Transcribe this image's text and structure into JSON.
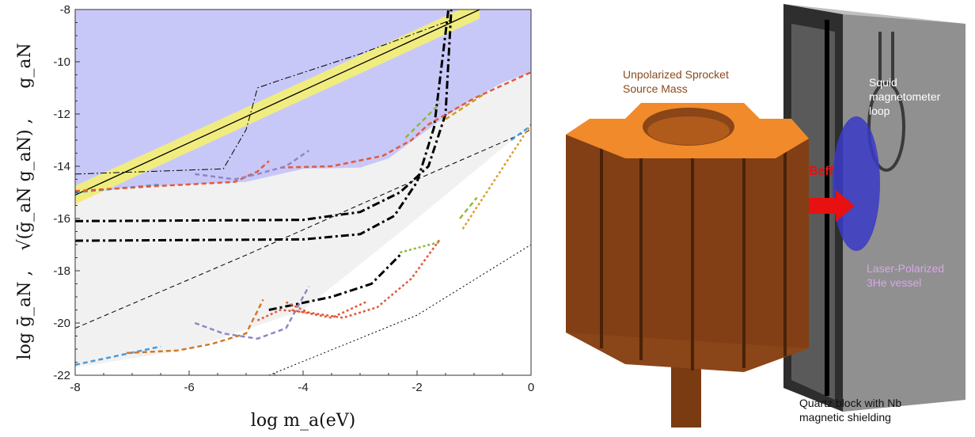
{
  "chart_data": {
    "type": "line",
    "xlabel": "log m_a(eV)",
    "ylabel_parts": [
      "log  ḡ_aN ,",
      "√(ḡ_aN g_aN) ,",
      "g_aN"
    ],
    "xlim": [
      -8,
      0
    ],
    "ylim": [
      -22,
      -8
    ],
    "x_ticks": [
      "-8",
      "-6",
      "-4",
      "-2",
      "0"
    ],
    "y_ticks": [
      "-8",
      "-10",
      "-12",
      "-14",
      "-16",
      "-18",
      "-20",
      "-22"
    ],
    "grid": false,
    "regions": [
      {
        "type": "excluded-top",
        "color": "#9090f0",
        "y_lower": -8.4
      },
      {
        "type": "excluded-region",
        "color": "#c8c8f8",
        "boundary": [
          [
            -8,
            -15.1
          ],
          [
            -7,
            -14.8
          ],
          [
            -6,
            -14.7
          ],
          [
            -5,
            -14.6
          ],
          [
            -4,
            -14.1
          ],
          [
            -3,
            -14.05
          ],
          [
            -2.5,
            -13.7
          ],
          [
            -2,
            -12.9
          ],
          [
            -1.5,
            -12.1
          ],
          [
            -1,
            -11.4
          ],
          [
            -0.5,
            -10.8
          ],
          [
            0,
            -10.4
          ]
        ]
      },
      {
        "type": "grey-band",
        "color": "#f1f1f1",
        "lower": [
          [
            -8,
            -21.7
          ],
          [
            -6,
            -21.0
          ],
          [
            -4,
            -19.5
          ],
          [
            -2,
            -16.0
          ],
          [
            0,
            -12.4
          ]
        ]
      }
    ],
    "band": {
      "color": "#f0ec80",
      "center": [
        [
          -8,
          -15.1
        ],
        [
          -0.9,
          -8.0
        ]
      ],
      "half_width": 0.35
    },
    "series": [
      {
        "style": "solid",
        "color": "#000000",
        "points": [
          [
            -8,
            -15.1
          ],
          [
            -0.9,
            -8.0
          ]
        ]
      },
      {
        "style": "dashdot-thin",
        "color": "#000000",
        "points": [
          [
            -8,
            -14.3
          ],
          [
            -5.4,
            -14.1
          ],
          [
            -5.0,
            -12.6
          ],
          [
            -4.8,
            -11.0
          ],
          [
            -4.4,
            -10.7
          ],
          [
            -3.0,
            -9.7
          ],
          [
            -1.4,
            -8.4
          ]
        ]
      },
      {
        "style": "dashed-thin",
        "color": "#000000",
        "points": [
          [
            -8,
            -20.2
          ],
          [
            -5,
            -17.4
          ],
          [
            -2,
            -14.5
          ],
          [
            0,
            -12.6
          ]
        ]
      },
      {
        "style": "dotted-thin",
        "color": "#000000",
        "points": [
          [
            -4.6,
            -22
          ],
          [
            -2,
            -19.7
          ],
          [
            0,
            -17.0
          ]
        ]
      },
      {
        "style": "dashdot-thick",
        "color": "#000000",
        "points": [
          [
            -8,
            -16.1
          ],
          [
            -4,
            -16.05
          ],
          [
            -3,
            -15.75
          ],
          [
            -2.3,
            -15.0
          ],
          [
            -1.8,
            -14.0
          ],
          [
            -1.5,
            -12.0
          ],
          [
            -1.4,
            -8.0
          ]
        ]
      },
      {
        "style": "dashdot-thick",
        "color": "#000000",
        "points": [
          [
            -8,
            -16.85
          ],
          [
            -4,
            -16.8
          ],
          [
            -3,
            -16.6
          ],
          [
            -2.4,
            -15.9
          ],
          [
            -2,
            -14.6
          ],
          [
            -1.7,
            -12.5
          ],
          [
            -1.45,
            -8.0
          ]
        ]
      },
      {
        "style": "dashdot-thick",
        "color": "#000000",
        "points": [
          [
            -4.6,
            -19.5
          ],
          [
            -3.5,
            -19.0
          ],
          [
            -2.8,
            -18.5
          ],
          [
            -2.3,
            -17.4
          ]
        ]
      },
      {
        "style": "dashed",
        "color": "#4a9ad6",
        "points": [
          [
            -8,
            -15.0
          ],
          [
            -6.5,
            -14.7
          ]
        ]
      },
      {
        "style": "dashed",
        "color": "#4a9ad6",
        "points": [
          [
            -0.35,
            -13.0
          ],
          [
            0,
            -12.45
          ]
        ]
      },
      {
        "style": "dashed",
        "color": "#4a9ad6",
        "points": [
          [
            -8,
            -21.6
          ],
          [
            -6.5,
            -20.9
          ]
        ]
      },
      {
        "style": "dashed",
        "color": "#e05b3a",
        "points": [
          [
            -8,
            -14.95
          ],
          [
            -6.5,
            -14.75
          ],
          [
            -5.2,
            -14.6
          ],
          [
            -4.8,
            -14.2
          ],
          [
            -4.6,
            -13.8
          ]
        ]
      },
      {
        "style": "dashed",
        "color": "#e05b3a",
        "points": [
          [
            -4.4,
            -14.05
          ],
          [
            -3.5,
            -14.0
          ],
          [
            -2.6,
            -13.6
          ],
          [
            -2.1,
            -13.0
          ],
          [
            -1.8,
            -12.4
          ],
          [
            -1,
            -11.4
          ],
          [
            0,
            -10.4
          ]
        ]
      },
      {
        "style": "dashed",
        "color": "#c8a020",
        "points": [
          [
            -1.5,
            -12.2
          ],
          [
            -0.8,
            -11.2
          ]
        ]
      },
      {
        "style": "dashed",
        "color": "#8fb838",
        "points": [
          [
            -2.2,
            -12.9
          ],
          [
            -1.6,
            -11.6
          ]
        ]
      },
      {
        "style": "dotted",
        "color": "#d8a030",
        "points": [
          [
            -1.2,
            -16.4
          ],
          [
            0,
            -12.4
          ]
        ]
      },
      {
        "style": "dashed",
        "color": "#8fb838",
        "points": [
          [
            -1.25,
            -16.0
          ],
          [
            -0.95,
            -15.2
          ]
        ]
      },
      {
        "style": "dotted",
        "color": "#8fb838",
        "points": [
          [
            -2.3,
            -17.3
          ],
          [
            -1.6,
            -16.9
          ]
        ]
      },
      {
        "style": "dashed",
        "color": "#8f86c4",
        "points": [
          [
            -5.9,
            -14.3
          ],
          [
            -5.2,
            -14.5
          ],
          [
            -4.8,
            -14.3
          ],
          [
            -4.3,
            -14.0
          ],
          [
            -3.9,
            -13.4
          ]
        ]
      },
      {
        "style": "dotted",
        "color": "#e05b3a",
        "points": [
          [
            -4.3,
            -19.2
          ],
          [
            -3.9,
            -19.6
          ],
          [
            -3.3,
            -19.8
          ],
          [
            -2.7,
            -19.4
          ],
          [
            -2.1,
            -18.3
          ],
          [
            -1.6,
            -16.8
          ]
        ]
      },
      {
        "style": "dotted",
        "color": "#e05b3a",
        "points": [
          [
            -4.2,
            -19.5
          ],
          [
            -3.5,
            -19.8
          ],
          [
            -2.9,
            -19.2
          ]
        ]
      },
      {
        "style": "dashed",
        "color": "#d07a2a",
        "points": [
          [
            -7.1,
            -21.15
          ],
          [
            -6.2,
            -21.05
          ],
          [
            -5.6,
            -20.8
          ],
          [
            -5.0,
            -20.4
          ],
          [
            -4.7,
            -19.1
          ]
        ]
      },
      {
        "style": "dashed",
        "color": "#8f86c4",
        "points": [
          [
            -5.9,
            -20.0
          ],
          [
            -5.4,
            -20.4
          ],
          [
            -4.8,
            -20.6
          ],
          [
            -4.3,
            -20.2
          ],
          [
            -3.9,
            -18.6
          ]
        ]
      },
      {
        "style": "dotted",
        "color": "#e05b3a",
        "points": [
          [
            -4.8,
            -19.9
          ],
          [
            -4.4,
            -19.5
          ],
          [
            -3.9,
            -19.6
          ]
        ]
      }
    ]
  },
  "figure": {
    "labels": {
      "source_mass": [
        "Unpolarized Sprocket",
        "Source Mass"
      ],
      "squid": [
        "Squid",
        "magnetometer",
        "loop"
      ],
      "beff": "Beff",
      "vessel": [
        "Laser-Polarized",
        "3He vessel"
      ],
      "quartz": [
        "Quartz block with Nb",
        "magnetic shielding"
      ]
    },
    "colors": {
      "sprocket_top": "#f08a2a",
      "sprocket_body": "#8a4518",
      "vessel": "#3a3ac8",
      "arrow": "#e81010",
      "shield": "#6a6a6a"
    }
  }
}
